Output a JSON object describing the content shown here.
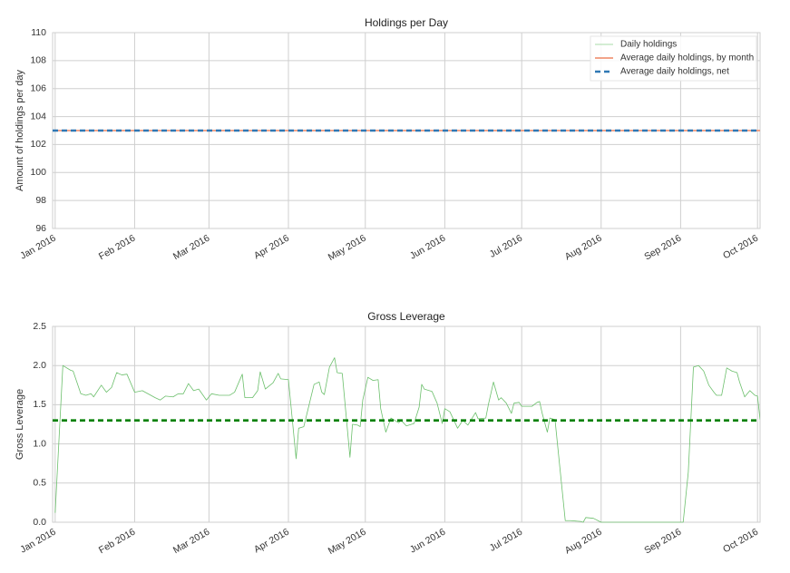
{
  "chart_data": [
    {
      "type": "line",
      "title": "Holdings per Day",
      "ylabel": "Amount of holdings per day",
      "xlim": [
        -1,
        275
      ],
      "ylim": [
        96,
        110
      ],
      "xticks": [
        {
          "value": 0,
          "label": "Jan 2016"
        },
        {
          "value": 31,
          "label": "Feb 2016"
        },
        {
          "value": 60,
          "label": "Mar 2016"
        },
        {
          "value": 91,
          "label": "Apr 2016"
        },
        {
          "value": 121,
          "label": "May 2016"
        },
        {
          "value": 152,
          "label": "Jun 2016"
        },
        {
          "value": 182,
          "label": "Jul 2016"
        },
        {
          "value": 213,
          "label": "Aug 2016"
        },
        {
          "value": 244,
          "label": "Sep 2016"
        },
        {
          "value": 274,
          "label": "Oct 2016"
        }
      ],
      "yticks": [
        96,
        98,
        100,
        102,
        104,
        106,
        108,
        110
      ],
      "grid": true,
      "legend": "upper right",
      "series": [
        {
          "name": "Daily holdings",
          "color": "#8ccf8c",
          "linestyle": "solid",
          "x": [
            -1,
            275
          ],
          "values": [
            103,
            103
          ]
        },
        {
          "name": "Average daily holdings, by month",
          "color": "#ee8662",
          "linestyle": "solid",
          "x": [
            -1,
            275
          ],
          "values": [
            103,
            103
          ]
        },
        {
          "name": "Average daily holdings, net",
          "color": "#2f78b4",
          "linestyle": "dashed",
          "x": [
            -1,
            275
          ],
          "values": [
            103,
            103
          ]
        }
      ]
    },
    {
      "type": "line",
      "title": "Gross Leverage",
      "ylabel": "Gross Leverage",
      "xlim": [
        -1,
        275
      ],
      "ylim": [
        0,
        2.5
      ],
      "xticks": [
        {
          "value": 0,
          "label": "Jan 2016"
        },
        {
          "value": 31,
          "label": "Feb 2016"
        },
        {
          "value": 60,
          "label": "Mar 2016"
        },
        {
          "value": 91,
          "label": "Apr 2016"
        },
        {
          "value": 121,
          "label": "May 2016"
        },
        {
          "value": 152,
          "label": "Jun 2016"
        },
        {
          "value": 182,
          "label": "Jul 2016"
        },
        {
          "value": 213,
          "label": "Aug 2016"
        },
        {
          "value": 244,
          "label": "Sep 2016"
        },
        {
          "value": 274,
          "label": "Oct 2016"
        }
      ],
      "yticks": [
        {
          "value": 0,
          "label": "0.0"
        },
        0.5,
        {
          "value": 1,
          "label": "1.0"
        },
        1.5,
        {
          "value": 2,
          "label": "2.0"
        },
        2.5
      ],
      "grid": true,
      "series": [
        {
          "color": "#6cbf6c",
          "linestyle": "solid",
          "x": [
            0,
            3,
            6,
            7,
            10,
            12,
            14,
            15,
            18,
            20,
            22,
            24,
            26,
            28,
            31,
            34,
            39,
            41,
            43,
            46,
            48,
            50,
            52,
            54,
            56,
            59,
            61,
            64,
            68,
            70,
            73,
            74,
            77,
            79,
            80,
            82,
            85,
            87,
            88,
            91,
            94,
            95,
            97,
            99,
            101,
            103,
            104,
            105,
            107,
            109,
            110,
            112,
            115,
            116,
            118,
            119,
            120,
            122,
            124,
            126,
            127,
            129,
            131,
            134,
            135,
            137,
            140,
            142,
            143,
            144,
            147,
            149,
            151,
            152,
            154,
            157,
            159,
            161,
            164,
            165,
            168,
            169,
            171,
            173,
            174,
            176,
            178,
            179,
            181,
            182,
            186,
            188,
            189,
            190,
            192,
            193,
            195,
            199,
            201,
            205,
            206,
            207,
            210,
            213,
            245,
            247,
            249,
            251,
            253,
            255,
            257,
            258,
            260,
            262,
            264,
            266,
            267,
            269,
            271,
            273,
            274,
            275
          ],
          "values": [
            0.12,
            2.0,
            1.94,
            1.93,
            1.64,
            1.62,
            1.64,
            1.6,
            1.75,
            1.66,
            1.72,
            1.91,
            1.88,
            1.89,
            1.66,
            1.68,
            1.59,
            1.56,
            1.61,
            1.6,
            1.64,
            1.64,
            1.77,
            1.68,
            1.7,
            1.56,
            1.64,
            1.62,
            1.62,
            1.66,
            1.89,
            1.59,
            1.59,
            1.68,
            1.92,
            1.7,
            1.78,
            1.9,
            1.83,
            1.82,
            0.81,
            1.2,
            1.22,
            1.49,
            1.76,
            1.79,
            1.66,
            1.63,
            1.98,
            2.1,
            1.91,
            1.9,
            0.83,
            1.25,
            1.24,
            1.22,
            1.56,
            1.85,
            1.81,
            1.82,
            1.45,
            1.15,
            1.33,
            1.27,
            1.3,
            1.23,
            1.26,
            1.47,
            1.76,
            1.7,
            1.67,
            1.52,
            1.26,
            1.45,
            1.41,
            1.2,
            1.3,
            1.24,
            1.4,
            1.32,
            1.33,
            1.5,
            1.79,
            1.56,
            1.59,
            1.52,
            1.39,
            1.52,
            1.53,
            1.48,
            1.48,
            1.53,
            1.54,
            1.39,
            1.15,
            1.33,
            1.31,
            0.02,
            0.02,
            0.01,
            0,
            0.06,
            0.05,
            0,
            0,
            0.64,
            1.98,
            2.0,
            1.93,
            1.75,
            1.66,
            1.62,
            1.62,
            1.97,
            1.93,
            1.91,
            1.79,
            1.6,
            1.68,
            1.62,
            1.61,
            1.31
          ]
        },
        {
          "color": "#008000",
          "linestyle": "dashed",
          "x": [
            -1,
            275
          ],
          "values": [
            1.3,
            1.3
          ]
        }
      ]
    }
  ]
}
